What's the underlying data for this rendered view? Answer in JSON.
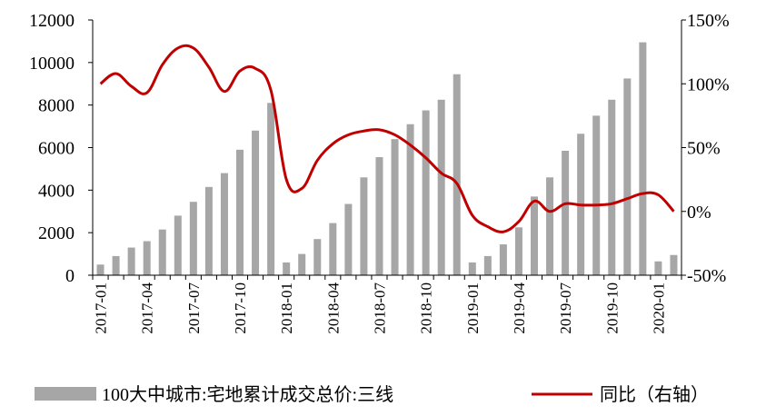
{
  "chart_data": {
    "type": "bar+line",
    "title": "",
    "categories": [
      "2017-01",
      "2017-02",
      "2017-03",
      "2017-04",
      "2017-05",
      "2017-06",
      "2017-07",
      "2017-08",
      "2017-09",
      "2017-10",
      "2017-11",
      "2017-12",
      "2018-01",
      "2018-02",
      "2018-03",
      "2018-04",
      "2018-05",
      "2018-06",
      "2018-07",
      "2018-08",
      "2018-09",
      "2018-10",
      "2018-11",
      "2018-12",
      "2019-01",
      "2019-02",
      "2019-03",
      "2019-04",
      "2019-05",
      "2019-06",
      "2019-07",
      "2019-08",
      "2019-09",
      "2019-10",
      "2019-11",
      "2019-12",
      "2020-01",
      "2020-02"
    ],
    "x_tick_labels": [
      "2017-01",
      "2017-04",
      "2017-07",
      "2017-10",
      "2018-01",
      "2018-04",
      "2018-07",
      "2018-10",
      "2019-01",
      "2019-04",
      "2019-07",
      "2019-10",
      "2020-01"
    ],
    "series": [
      {
        "name": "100大中城市:宅地累计成交总价:三线",
        "type": "bar",
        "axis": "left",
        "color": "#a6a6a6",
        "values": [
          500,
          900,
          1300,
          1600,
          2150,
          2800,
          3450,
          4150,
          4800,
          5900,
          6800,
          8100,
          600,
          1000,
          1700,
          2450,
          3350,
          4600,
          5550,
          6400,
          7100,
          7750,
          8250,
          9450,
          600,
          900,
          1450,
          2250,
          3700,
          4600,
          5850,
          6650,
          7500,
          8250,
          9250,
          10950,
          650,
          950
        ]
      },
      {
        "name": "同比（右轴）",
        "type": "line",
        "axis": "right",
        "color": "#c00000",
        "values": [
          100,
          108,
          98,
          93,
          115,
          128,
          128,
          113,
          94,
          110,
          112,
          95,
          25,
          18,
          40,
          53,
          60,
          63,
          64,
          60,
          52,
          42,
          30,
          22,
          -3,
          -12,
          -16,
          -8,
          8,
          0,
          6,
          5,
          5,
          6,
          10,
          14,
          13,
          0
        ]
      }
    ],
    "y_left": {
      "ylim": [
        0,
        12000
      ],
      "ticks": [
        "0",
        "2000",
        "4000",
        "6000",
        "8000",
        "10000",
        "12000"
      ]
    },
    "y_right": {
      "ylim": [
        -50,
        150
      ],
      "ticks": [
        "-50%",
        "0%",
        "50%",
        "100%",
        "150%"
      ]
    },
    "grid": false,
    "legend_position": "bottom"
  }
}
